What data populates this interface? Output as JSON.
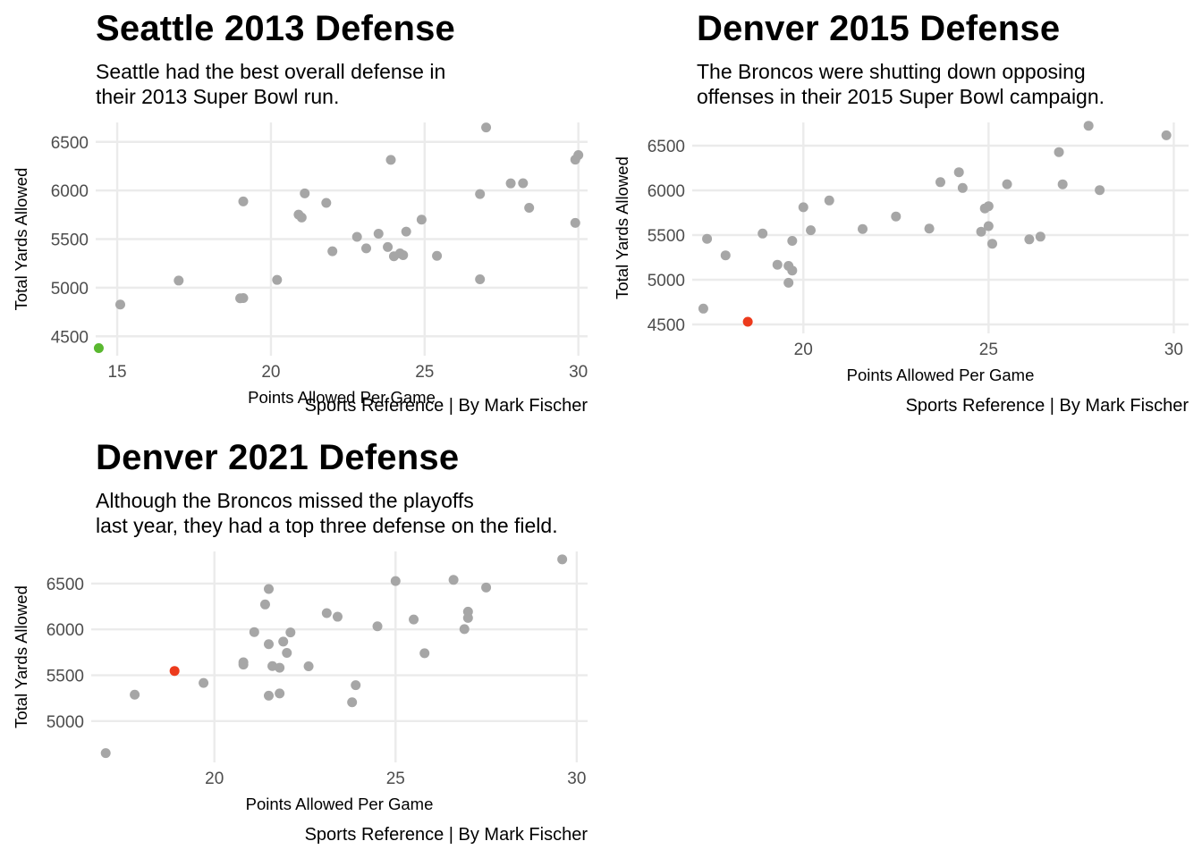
{
  "colors": {
    "point": "#a6a6a6",
    "seattle_highlight": "#5ab830",
    "denver_highlight": "#ec3a1c",
    "grid": "#ebebeb"
  },
  "chart_data": [
    {
      "type": "scatter",
      "title": "Seattle 2013 Defense",
      "subtitle": "Seattle had the best overall defense in\ntheir 2013 Super Bowl run.",
      "xlabel": "Points Allowed Per Game",
      "ylabel": "Total Yards Allowed",
      "caption": "Sports Reference | By Mark Fischer",
      "xlim": [
        14.3,
        30.3
      ],
      "ylim": [
        4300,
        6700
      ],
      "x_ticks": [
        15,
        20,
        25,
        30
      ],
      "y_ticks": [
        4500,
        5000,
        5500,
        6000,
        6500
      ],
      "grid": true,
      "highlight_color": "#5ab830",
      "highlight": {
        "x": 14.4,
        "y": 4378
      },
      "points": [
        {
          "x": 15.1,
          "y": 4826
        },
        {
          "x": 17.0,
          "y": 5073
        },
        {
          "x": 19.0,
          "y": 4891
        },
        {
          "x": 19.1,
          "y": 4893
        },
        {
          "x": 19.1,
          "y": 5887
        },
        {
          "x": 20.2,
          "y": 5080
        },
        {
          "x": 20.9,
          "y": 5752
        },
        {
          "x": 21.0,
          "y": 5722
        },
        {
          "x": 21.1,
          "y": 5970
        },
        {
          "x": 21.8,
          "y": 5872
        },
        {
          "x": 22.0,
          "y": 5375
        },
        {
          "x": 22.8,
          "y": 5523
        },
        {
          "x": 23.1,
          "y": 5405
        },
        {
          "x": 23.5,
          "y": 5555
        },
        {
          "x": 23.8,
          "y": 5418
        },
        {
          "x": 23.9,
          "y": 6315
        },
        {
          "x": 24.0,
          "y": 5323
        },
        {
          "x": 24.2,
          "y": 5353
        },
        {
          "x": 24.3,
          "y": 5335
        },
        {
          "x": 24.4,
          "y": 5577
        },
        {
          "x": 24.9,
          "y": 5700
        },
        {
          "x": 25.4,
          "y": 5328
        },
        {
          "x": 26.8,
          "y": 5963
        },
        {
          "x": 26.8,
          "y": 5086
        },
        {
          "x": 27.0,
          "y": 6648
        },
        {
          "x": 27.8,
          "y": 6073
        },
        {
          "x": 28.2,
          "y": 6075
        },
        {
          "x": 28.4,
          "y": 5822
        },
        {
          "x": 29.9,
          "y": 6317
        },
        {
          "x": 30.0,
          "y": 6364
        },
        {
          "x": 29.9,
          "y": 5667
        }
      ]
    },
    {
      "type": "scatter",
      "title": "Denver 2015 Defense",
      "subtitle": "The Broncos were shutting down opposing\noffenses in their 2015 Super Bowl campaign.",
      "xlabel": "Points Allowed Per Game",
      "ylabel": "Total Yards Allowed",
      "caption": "Sports Reference | By Mark Fischer",
      "xlim": [
        17.0,
        30.4
      ],
      "ylim": [
        4400,
        6760
      ],
      "x_ticks": [
        20,
        25,
        30
      ],
      "y_ticks": [
        4500,
        5000,
        5500,
        6000,
        6500
      ],
      "grid": true,
      "highlight_color": "#ec3a1c",
      "highlight": {
        "x": 18.5,
        "y": 4530
      },
      "points": [
        {
          "x": 17.3,
          "y": 4677
        },
        {
          "x": 17.4,
          "y": 5458
        },
        {
          "x": 17.9,
          "y": 5273
        },
        {
          "x": 18.9,
          "y": 5517
        },
        {
          "x": 19.3,
          "y": 5168
        },
        {
          "x": 19.6,
          "y": 4966
        },
        {
          "x": 19.6,
          "y": 5155
        },
        {
          "x": 19.7,
          "y": 5103
        },
        {
          "x": 19.7,
          "y": 5435
        },
        {
          "x": 20.0,
          "y": 5811
        },
        {
          "x": 20.2,
          "y": 5554
        },
        {
          "x": 20.7,
          "y": 5887
        },
        {
          "x": 21.6,
          "y": 5568
        },
        {
          "x": 22.5,
          "y": 5708
        },
        {
          "x": 23.4,
          "y": 5573
        },
        {
          "x": 23.7,
          "y": 6092
        },
        {
          "x": 24.2,
          "y": 6203
        },
        {
          "x": 24.3,
          "y": 6027
        },
        {
          "x": 24.8,
          "y": 5538
        },
        {
          "x": 24.9,
          "y": 5798
        },
        {
          "x": 25.0,
          "y": 5823
        },
        {
          "x": 25.0,
          "y": 5600
        },
        {
          "x": 25.1,
          "y": 5403
        },
        {
          "x": 25.5,
          "y": 6069
        },
        {
          "x": 26.1,
          "y": 5452
        },
        {
          "x": 26.4,
          "y": 5482
        },
        {
          "x": 26.9,
          "y": 6428
        },
        {
          "x": 27.0,
          "y": 6068
        },
        {
          "x": 27.7,
          "y": 6723
        },
        {
          "x": 28.0,
          "y": 6003
        },
        {
          "x": 29.8,
          "y": 6616
        }
      ]
    },
    {
      "type": "scatter",
      "title": "Denver 2021 Defense",
      "subtitle": "Although the Broncos missed the playoffs\nlast year, they had a top three defense on the field.",
      "xlabel": "Points Allowed Per Game",
      "ylabel": "Total Yards Allowed",
      "caption": "Sports Reference | By Mark Fischer",
      "xlim": [
        16.6,
        30.3
      ],
      "ylim": [
        4550,
        6850
      ],
      "x_ticks": [
        20,
        25,
        30
      ],
      "y_ticks": [
        5000,
        5500,
        6000,
        6500
      ],
      "grid": true,
      "highlight_color": "#ec3a1c",
      "highlight": {
        "x": 18.9,
        "y": 5547
      },
      "points": [
        {
          "x": 17.0,
          "y": 4651
        },
        {
          "x": 17.8,
          "y": 5288
        },
        {
          "x": 19.7,
          "y": 5416
        },
        {
          "x": 21.1,
          "y": 5971
        },
        {
          "x": 20.8,
          "y": 5641
        },
        {
          "x": 20.8,
          "y": 5616
        },
        {
          "x": 21.4,
          "y": 6272
        },
        {
          "x": 21.5,
          "y": 6441
        },
        {
          "x": 21.5,
          "y": 5839
        },
        {
          "x": 21.5,
          "y": 5277
        },
        {
          "x": 21.6,
          "y": 5600
        },
        {
          "x": 21.8,
          "y": 5302
        },
        {
          "x": 21.8,
          "y": 5582
        },
        {
          "x": 21.9,
          "y": 5867
        },
        {
          "x": 22.0,
          "y": 5744
        },
        {
          "x": 22.1,
          "y": 5967
        },
        {
          "x": 22.6,
          "y": 5598
        },
        {
          "x": 23.1,
          "y": 6178
        },
        {
          "x": 23.4,
          "y": 6138
        },
        {
          "x": 23.8,
          "y": 5205
        },
        {
          "x": 23.9,
          "y": 5392
        },
        {
          "x": 24.5,
          "y": 6034
        },
        {
          "x": 25.0,
          "y": 6527
        },
        {
          "x": 25.5,
          "y": 6108
        },
        {
          "x": 25.8,
          "y": 5740
        },
        {
          "x": 26.6,
          "y": 6540
        },
        {
          "x": 26.9,
          "y": 6003
        },
        {
          "x": 27.0,
          "y": 6125
        },
        {
          "x": 27.0,
          "y": 6193
        },
        {
          "x": 27.5,
          "y": 6457
        },
        {
          "x": 29.6,
          "y": 6764
        }
      ]
    }
  ]
}
